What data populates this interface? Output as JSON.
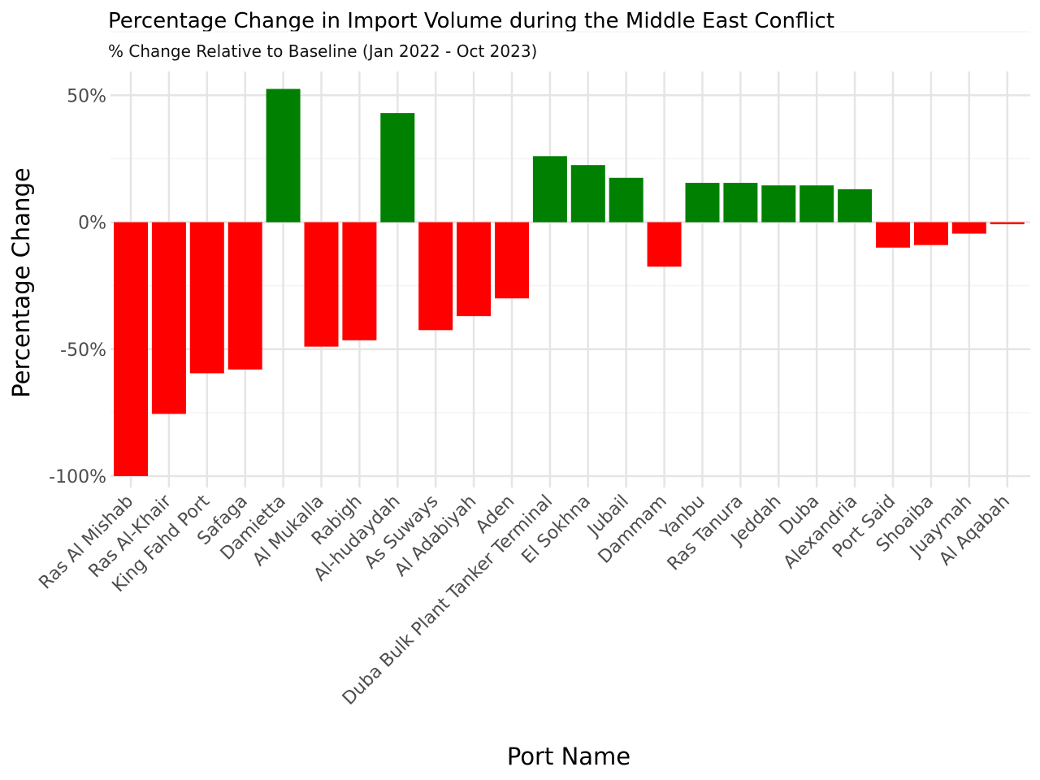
{
  "chart_data": {
    "type": "bar",
    "title": "Percentage Change in Import Volume during the Middle East Conflict",
    "subtitle": "% Change Relative to Baseline (Jan 2022 - Oct 2023)",
    "xlabel": "Port Name",
    "ylabel": "Percentage Change",
    "ylim": [
      -105,
      60
    ],
    "yticks": [
      50,
      0,
      -50,
      -100
    ],
    "ytick_labels": [
      "50%",
      "0%",
      "-50%",
      "-100%"
    ],
    "grid": true,
    "legend": "none",
    "colors": {
      "positive": "#008000",
      "negative": "#ff0000",
      "grid_major": "#e5e5e5",
      "grid_minor": "#f4f4f4"
    },
    "categories": [
      "Ras Al Mishab",
      "Ras Al-Khair",
      "King Fahd Port",
      "Safaga",
      "Damietta",
      "Al Mukalla",
      "Rabigh",
      "Al-hudaydah",
      "As Suways",
      "Al Adabiyah",
      "Aden",
      "Duba Bulk Plant Tanker Terminal",
      "El Sokhna",
      "Jubail",
      "Dammam",
      "Yanbu",
      "Ras Tanura",
      "Jeddah",
      "Duba",
      "Alexandria",
      "Port Said",
      "Shoaiba",
      "Juaymah",
      "Al Aqabah"
    ],
    "values": [
      -100,
      -75.5,
      -59.5,
      -58,
      52.5,
      -49,
      -46.5,
      43,
      -42.5,
      -37,
      -30,
      26,
      22.5,
      17.5,
      -17.5,
      15.5,
      15.5,
      14.5,
      14.5,
      13,
      -10,
      -9,
      -4.5,
      -0.8
    ]
  }
}
